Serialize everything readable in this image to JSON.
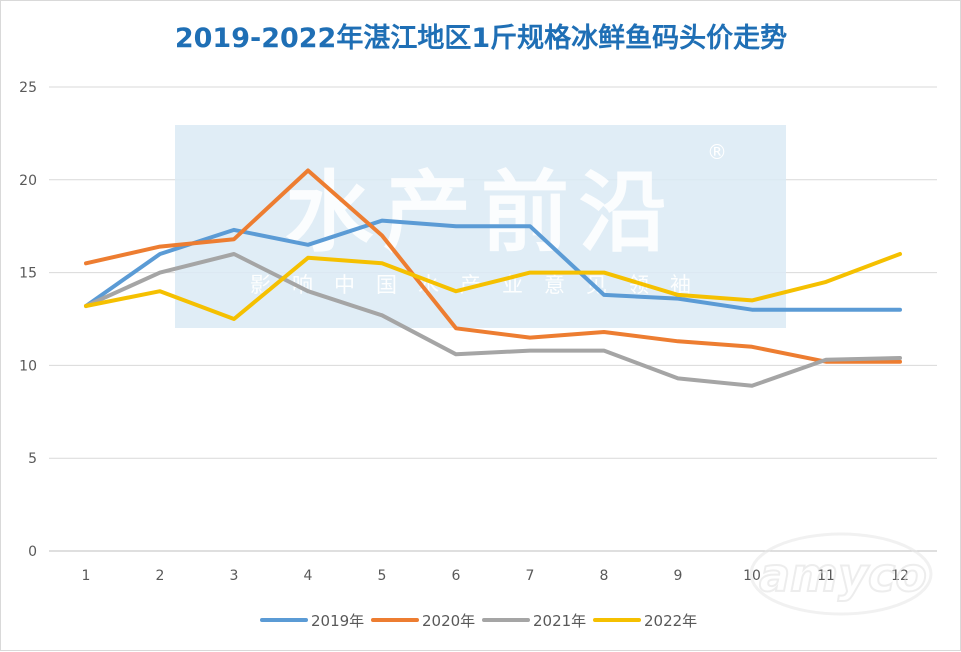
{
  "chart_data": {
    "type": "line",
    "title": "2019-2022年湛江地区1斤规格冰鲜鱼码头价走势",
    "x": [
      "1",
      "2",
      "3",
      "4",
      "5",
      "6",
      "7",
      "8",
      "9",
      "10",
      "11",
      "12"
    ],
    "ylim": [
      0,
      25
    ],
    "yticks": [
      0,
      5,
      10,
      15,
      20,
      25
    ],
    "grid": true,
    "legend_position": "bottom",
    "series": [
      {
        "name": "2019年",
        "color": "#5b9bd5",
        "values": [
          13.2,
          16.0,
          17.3,
          16.5,
          17.8,
          17.5,
          17.5,
          13.8,
          13.6,
          13.0,
          13.0,
          13.0
        ]
      },
      {
        "name": "2020年",
        "color": "#ed7d31",
        "values": [
          15.5,
          16.4,
          16.8,
          20.5,
          17.0,
          12.0,
          11.5,
          11.8,
          11.3,
          11.0,
          10.2,
          10.2
        ]
      },
      {
        "name": "2021年",
        "color": "#a5a5a5",
        "values": [
          13.2,
          15.0,
          16.0,
          14.0,
          12.7,
          10.6,
          10.8,
          10.8,
          9.3,
          8.9,
          10.3,
          10.4
        ]
      },
      {
        "name": "2022年",
        "color": "#f5c000",
        "values": [
          13.2,
          14.0,
          12.5,
          15.8,
          15.5,
          14.0,
          15.0,
          15.0,
          13.8,
          13.5,
          14.5,
          16.0
        ]
      }
    ]
  },
  "watermark": {
    "brand": "水产前沿",
    "registered": "®",
    "slogan": "影响中国水产业意见领袖",
    "corner_text": "amyco"
  }
}
